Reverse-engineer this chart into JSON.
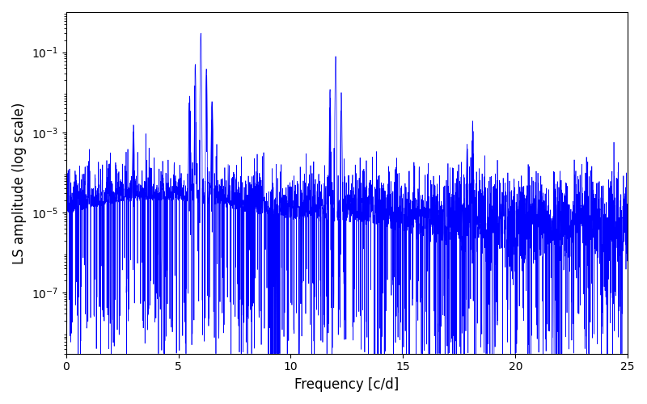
{
  "title": "",
  "xlabel": "Frequency [c/d]",
  "ylabel": "LS amplitude (log scale)",
  "xlim": [
    0,
    25
  ],
  "ylim": [
    3e-09,
    1.0
  ],
  "line_color": "blue",
  "figsize": [
    8.0,
    5.0
  ],
  "dpi": 100,
  "seed": 77,
  "n_points": 4000,
  "freq_min": 0.0,
  "freq_max": 25.0,
  "yticks": [
    1e-07,
    1e-05,
    0.001,
    0.1
  ],
  "xticks": [
    0,
    5,
    10,
    15,
    20,
    25
  ]
}
